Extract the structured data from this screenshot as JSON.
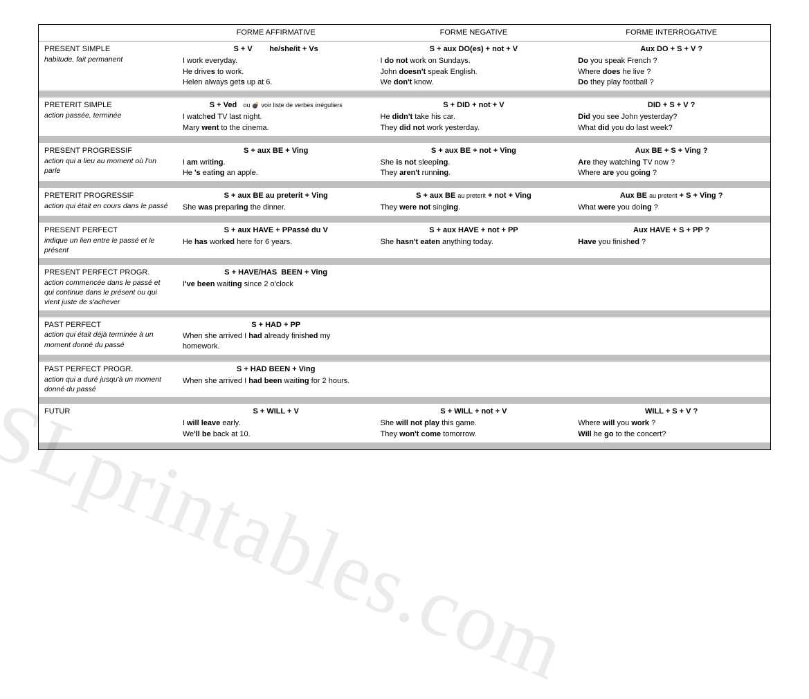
{
  "headers": {
    "col1": "FORME AFFIRMATIVE",
    "col2": "FORME NEGATIVE",
    "col3": "FORME INTERROGATIVE"
  },
  "watermark": "SLprintables.com",
  "rows": [
    {
      "name": "PRESENT SIMPLE",
      "desc": "habitude, fait permanent",
      "aff_formula": "S + V&nbsp;&nbsp;&nbsp;&nbsp;&nbsp;&nbsp;&nbsp;&nbsp;he/she/it + Vs",
      "aff_ex": [
        "I work everyday.",
        "He drive<b>s</b> to work.",
        "Helen always get<b>s</b> up at 6."
      ],
      "neg_formula": "S + aux DO(es) + not + V",
      "neg_ex": [
        "I <b>do not</b> work on Sundays.",
        "John <b>doesn't</b> speak English.",
        "We <b>don't</b> know."
      ],
      "int_formula": "Aux DO + S + V ?",
      "int_ex": [
        "<b>Do</b> you speak French ?",
        "Where <b>does</b> he live ?",
        "<b>Do</b> they play football ?"
      ]
    },
    {
      "name": "PRETERIT SIMPLE",
      "desc": "action passée, terminée",
      "aff_formula": "S + Ved&nbsp;&nbsp;&nbsp;<span class='small'>ou 💣 voir liste de verbes irréguliers</span>",
      "aff_ex": [
        "I watch<b>ed</b> TV last night.",
        "Mary <b>went</b> to the cinema."
      ],
      "neg_formula": "S + DID + not + V",
      "neg_ex": [
        "He <b>didn't</b> take his car.",
        "They <b>did not</b> work yesterday."
      ],
      "int_formula": "DID + S + V ?",
      "int_ex": [
        "<b>Did</b> you see John yesterday?",
        "What <b>did</b> you do last week?"
      ]
    },
    {
      "name": "PRESENT PROGRESSIF",
      "desc": "action qui a lieu au moment où l'on parle",
      "aff_formula": "S + aux BE + Ving",
      "aff_ex": [
        "I <b>am</b> writ<b>ing</b>.",
        "He <b>'s</b> eat<b>ing</b> an apple."
      ],
      "neg_formula": "S + aux BE + not + Ving",
      "neg_ex": [
        "She <b>is not</b> sleep<b>ing</b>.",
        "They <b>aren't</b> runn<b>ing</b>."
      ],
      "int_formula": "Aux BE + S + Ving ?",
      "int_ex": [
        "<b>Are</b> they watch<b>ing</b> TV now ?",
        "Where <b>are</b> you go<b>ing</b> ?"
      ]
    },
    {
      "name": "PRETERIT PROGRESSIF",
      "desc": "action qui était en cours dans le passé",
      "aff_formula": "S + aux BE au preterit + Ving",
      "aff_ex": [
        "She <b>was</b> prepar<b>ing</b> the dinner."
      ],
      "neg_formula": "S + aux BE <span class='small'>au preterit</span> + not + Ving",
      "neg_ex": [
        "They <b>were not</b> sing<b>ing</b>."
      ],
      "int_formula": "Aux BE <span class='small'>au preterit</span> + S + Ving ?",
      "int_ex": [
        "What <b>were</b> you do<b>ing</b> ?"
      ]
    },
    {
      "name": "PRESENT PERFECT",
      "desc": "indique un lien entre le passé et le présent",
      "aff_formula": "S + aux HAVE + PPassé du V",
      "aff_ex": [
        "He <b>has</b> work<b>ed</b> here for 6 years."
      ],
      "neg_formula": "S + aux HAVE + not + PP",
      "neg_ex": [
        "She <b>hasn't eaten</b> anything today."
      ],
      "int_formula": "Aux HAVE + S + PP ?",
      "int_ex": [
        "<b>Have</b> you finish<b>ed</b> ?"
      ]
    },
    {
      "name": "PRESENT PERFECT PROGR.",
      "desc": "action commencée dans le passé et qui continue dans le présent ou qui vient juste de s'achever",
      "aff_formula": "S + HAVE/HAS&nbsp;&nbsp;BEEN + Ving",
      "aff_ex": [
        "I<b>'ve been</b> wait<b>ing</b> since 2 o'clock"
      ],
      "neg_formula": "",
      "neg_ex": [],
      "int_formula": "",
      "int_ex": []
    },
    {
      "name": "PAST PERFECT",
      "desc": "action qui était déjà terminée à un moment donné du passé",
      "aff_formula": "S + HAD + PP",
      "aff_ex": [
        "When she arrived I <b>had</b> already finish<b>ed</b> my homework."
      ],
      "neg_formula": "",
      "neg_ex": [],
      "int_formula": "",
      "int_ex": []
    },
    {
      "name": "PAST PERFECT PROGR.",
      "desc": "action qui a duré jusqu'à un moment donné du passé",
      "aff_formula": "S + HAD BEEN + Ving",
      "aff_ex": [
        "When she arrived I <b>had been</b> wait<b>ing</b> for 2 hours."
      ],
      "neg_formula": "",
      "neg_ex": [],
      "int_formula": "",
      "int_ex": []
    },
    {
      "name": "FUTUR",
      "desc": "",
      "aff_formula": "S + WILL + V",
      "aff_ex": [
        "I <b>will leave</b> early.",
        "We<b>'ll be</b> back at 10."
      ],
      "neg_formula": "S + WILL + not + V",
      "neg_ex": [
        "She <b>will not play</b> this game.",
        "They <b>won't come</b> tomorrow."
      ],
      "int_formula": "WILL + S + V ?",
      "int_ex": [
        "Where <b>will</b> you <b>work</b> ?",
        "<b>Will</b> he <b>go</b> to the concert?"
      ]
    }
  ]
}
